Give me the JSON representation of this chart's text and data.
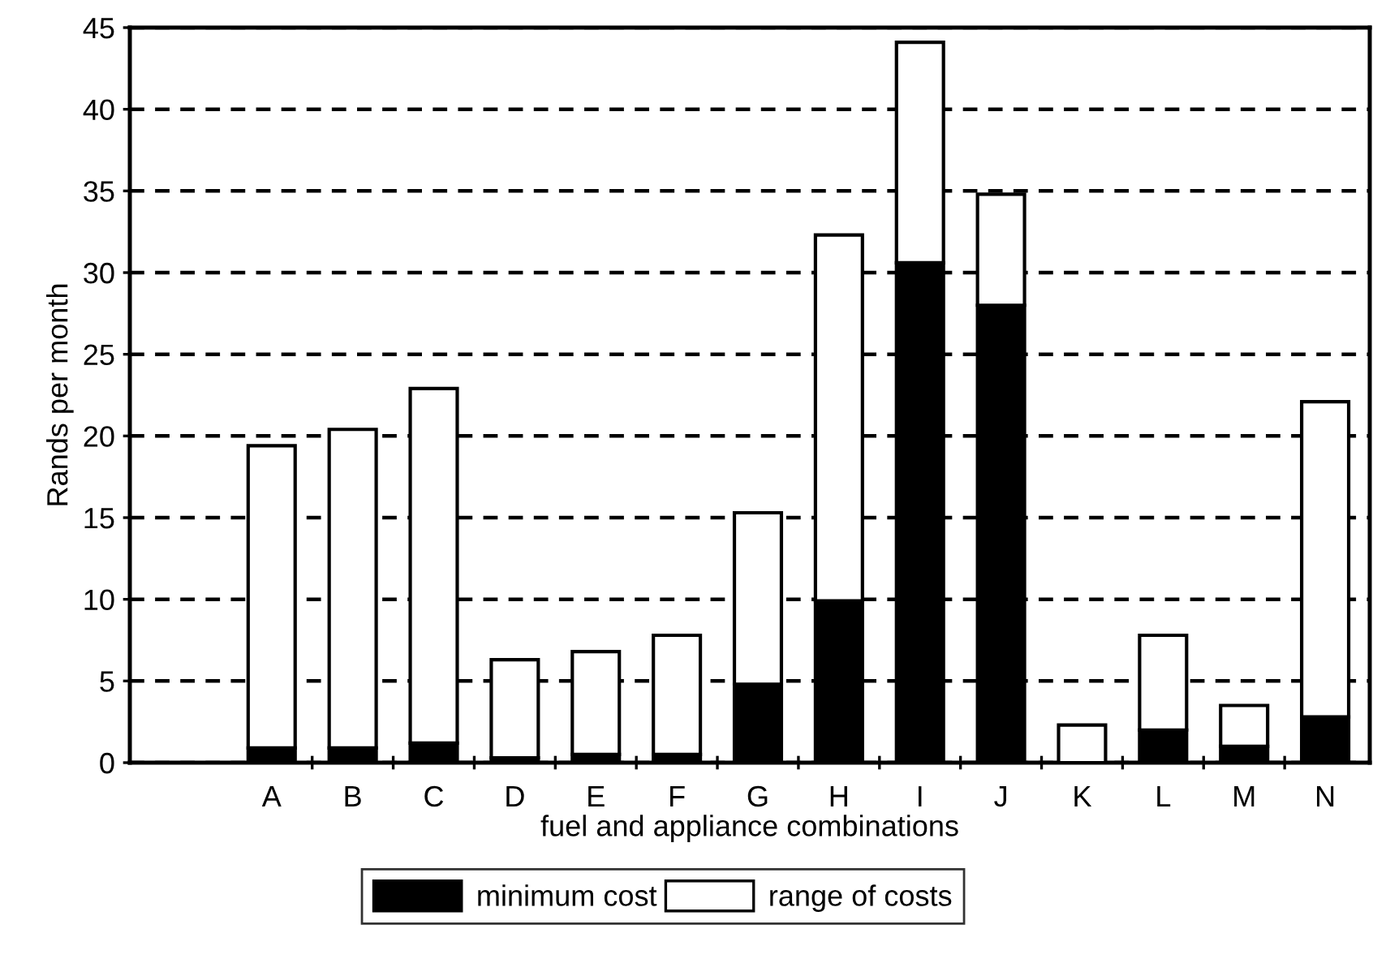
{
  "chart_data": {
    "type": "bar",
    "stacked": true,
    "xlabel": "fuel and appliance combinations",
    "ylabel": "Rands per month",
    "categories": [
      "A",
      "B",
      "C",
      "D",
      "E",
      "F",
      "G",
      "H",
      "I",
      "J",
      "K",
      "L",
      "M",
      "N"
    ],
    "series": [
      {
        "name": "minimum cost",
        "color": "#000000",
        "values": [
          0.9,
          0.9,
          1.2,
          0.3,
          0.5,
          0.5,
          4.8,
          9.9,
          30.6,
          28.0,
          null,
          2.0,
          1.0,
          2.8
        ]
      },
      {
        "name": "range of costs",
        "color": "#ffffff",
        "values": [
          18.5,
          19.5,
          21.7,
          6.0,
          6.3,
          7.3,
          10.5,
          22.4,
          13.5,
          6.8,
          2.3,
          5.8,
          2.5,
          19.3
        ]
      }
    ],
    "ylim": [
      0,
      45
    ],
    "yticks": [
      0,
      5,
      10,
      15,
      20,
      25,
      30,
      35,
      40,
      45
    ],
    "grid": "y",
    "legend": "bottom"
  }
}
